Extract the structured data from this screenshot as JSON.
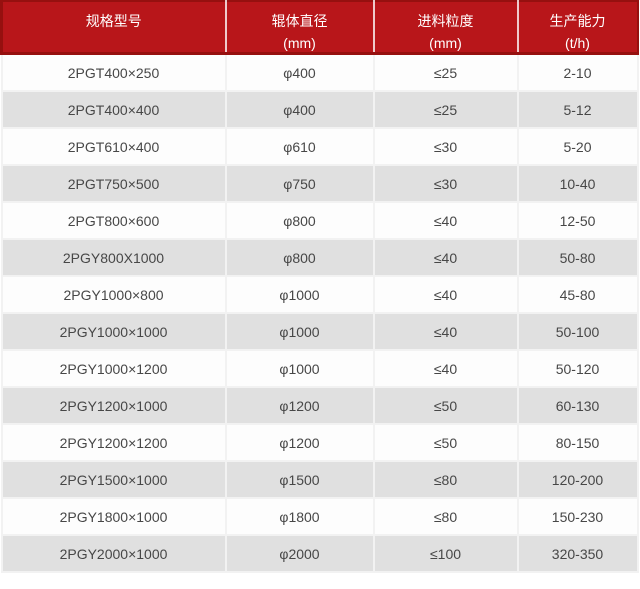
{
  "table": {
    "columns": [
      {
        "label": "规格型号",
        "unit": ""
      },
      {
        "label": "辊体直径",
        "unit": "(mm)"
      },
      {
        "label": "进料粒度",
        "unit": "(mm)"
      },
      {
        "label": "生产能力",
        "unit": "(t/h)"
      }
    ],
    "rows": [
      {
        "model": "2PGT400×250",
        "roller_diameter": "φ400",
        "feed_size": "≤25",
        "capacity": "2-10"
      },
      {
        "model": "2PGT400×400",
        "roller_diameter": "φ400",
        "feed_size": "≤25",
        "capacity": "5-12"
      },
      {
        "model": "2PGT610×400",
        "roller_diameter": "φ610",
        "feed_size": "≤30",
        "capacity": "5-20"
      },
      {
        "model": "2PGT750×500",
        "roller_diameter": "φ750",
        "feed_size": "≤30",
        "capacity": "10-40"
      },
      {
        "model": "2PGT800×600",
        "roller_diameter": "φ800",
        "feed_size": "≤40",
        "capacity": "12-50"
      },
      {
        "model": "2PGY800X1000",
        "roller_diameter": "φ800",
        "feed_size": "≤40",
        "capacity": "50-80"
      },
      {
        "model": "2PGY1000×800",
        "roller_diameter": "φ1000",
        "feed_size": "≤40",
        "capacity": "45-80"
      },
      {
        "model": "2PGY1000×1000",
        "roller_diameter": "φ1000",
        "feed_size": "≤40",
        "capacity": "50-100"
      },
      {
        "model": "2PGY1000×1200",
        "roller_diameter": "φ1000",
        "feed_size": "≤40",
        "capacity": "50-120"
      },
      {
        "model": "2PGY1200×1000",
        "roller_diameter": "φ1200",
        "feed_size": "≤50",
        "capacity": "60-130"
      },
      {
        "model": "2PGY1200×1200",
        "roller_diameter": "φ1200",
        "feed_size": "≤50",
        "capacity": "80-150"
      },
      {
        "model": "2PGY1500×1000",
        "roller_diameter": "φ1500",
        "feed_size": "≤80",
        "capacity": "120-200"
      },
      {
        "model": "2PGY1800×1000",
        "roller_diameter": "φ1800",
        "feed_size": "≤80",
        "capacity": "150-230"
      },
      {
        "model": "2PGY2000×1000",
        "roller_diameter": "φ2000",
        "feed_size": "≤100",
        "capacity": "320-350"
      }
    ]
  },
  "colors": {
    "header_bg": "#b8161a",
    "header_border": "#96100f",
    "header_text": "#ffffff",
    "row_bg": "#fdfdfd",
    "row_alt_bg": "#e0e0e0",
    "body_text": "#474747",
    "grid_line": "#f2f2f2"
  }
}
